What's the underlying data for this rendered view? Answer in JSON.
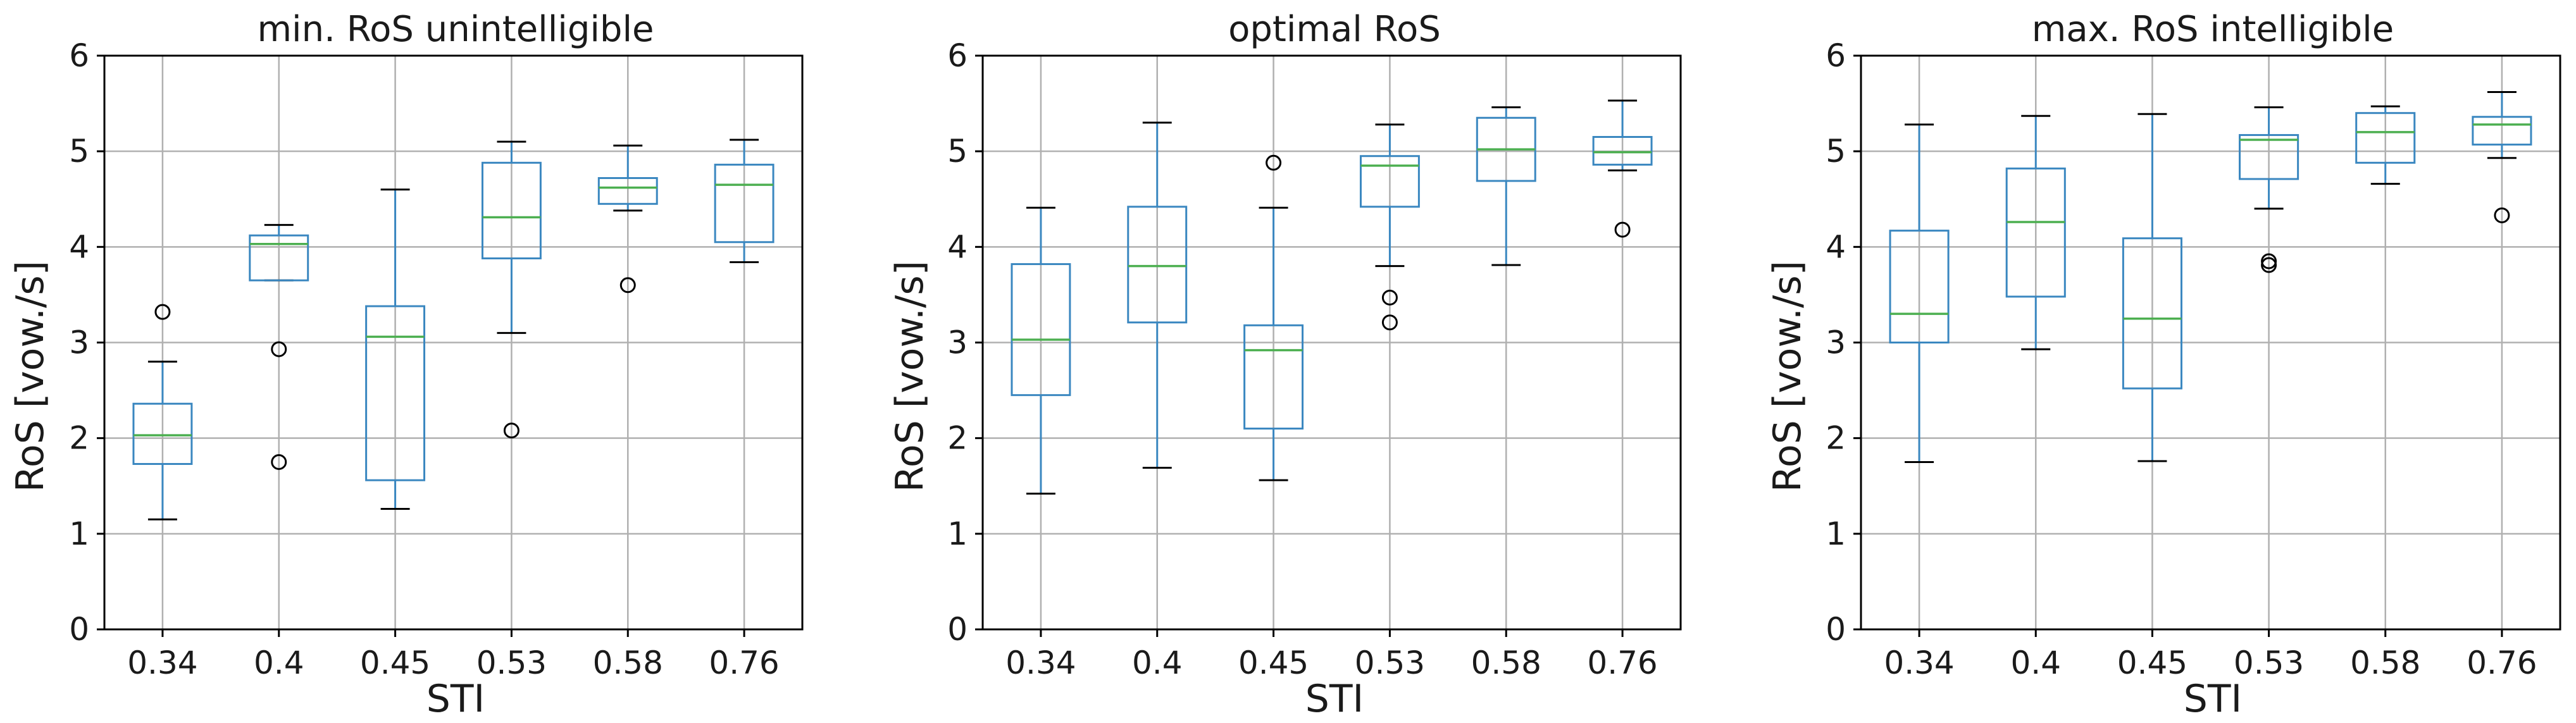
{
  "colors": {
    "box": "#3a87c0",
    "median": "#4caf50",
    "grid": "#b0b0b0",
    "flier": "#000000"
  },
  "chart_data": [
    {
      "type": "box",
      "title": "min. RoS unintelligible",
      "xlabel": "STI",
      "ylabel": "RoS [vow./s]",
      "ylim": [
        0,
        6
      ],
      "yticks": [
        "0",
        "1",
        "2",
        "3",
        "4",
        "5",
        "6"
      ],
      "categories": [
        "0.34",
        "0.4",
        "0.45",
        "0.53",
        "0.58",
        "0.76"
      ],
      "grid": true,
      "boxes": [
        {
          "whislo": 1.15,
          "q1": 1.73,
          "med": 2.03,
          "q3": 2.36,
          "whishi": 2.8,
          "fliers": [
            3.32
          ]
        },
        {
          "whislo": 3.65,
          "q1": 3.65,
          "med": 4.03,
          "q3": 4.12,
          "whishi": 4.23,
          "fliers": [
            2.93,
            1.75
          ]
        },
        {
          "whislo": 1.26,
          "q1": 1.56,
          "med": 3.06,
          "q3": 3.38,
          "whishi": 4.6,
          "fliers": []
        },
        {
          "whislo": 3.1,
          "q1": 3.88,
          "med": 4.31,
          "q3": 4.88,
          "whishi": 5.1,
          "fliers": [
            2.08
          ]
        },
        {
          "whislo": 4.38,
          "q1": 4.45,
          "med": 4.62,
          "q3": 4.72,
          "whishi": 5.06,
          "fliers": [
            3.6
          ]
        },
        {
          "whislo": 3.84,
          "q1": 4.05,
          "med": 4.65,
          "q3": 4.86,
          "whishi": 5.12,
          "fliers": []
        }
      ]
    },
    {
      "type": "box",
      "title": "optimal RoS",
      "xlabel": "STI",
      "ylabel": "RoS [vow./s]",
      "ylim": [
        0,
        6
      ],
      "yticks": [
        "0",
        "1",
        "2",
        "3",
        "4",
        "5",
        "6"
      ],
      "categories": [
        "0.34",
        "0.4",
        "0.45",
        "0.53",
        "0.58",
        "0.76"
      ],
      "grid": true,
      "boxes": [
        {
          "whislo": 1.42,
          "q1": 2.45,
          "med": 3.03,
          "q3": 3.82,
          "whishi": 4.41,
          "fliers": []
        },
        {
          "whislo": 1.69,
          "q1": 3.21,
          "med": 3.8,
          "q3": 4.42,
          "whishi": 5.3,
          "fliers": []
        },
        {
          "whislo": 1.56,
          "q1": 2.1,
          "med": 2.92,
          "q3": 3.18,
          "whishi": 4.41,
          "fliers": [
            4.88
          ]
        },
        {
          "whislo": 3.8,
          "q1": 4.42,
          "med": 4.85,
          "q3": 4.95,
          "whishi": 5.28,
          "fliers": [
            3.47,
            3.21
          ]
        },
        {
          "whislo": 3.81,
          "q1": 4.69,
          "med": 5.02,
          "q3": 5.35,
          "whishi": 5.46,
          "fliers": []
        },
        {
          "whislo": 4.8,
          "q1": 4.86,
          "med": 4.99,
          "q3": 5.15,
          "whishi": 5.53,
          "fliers": [
            4.18
          ]
        }
      ]
    },
    {
      "type": "box",
      "title": "max. RoS intelligible",
      "xlabel": "STI",
      "ylabel": "RoS [vow./s]",
      "ylim": [
        0,
        6
      ],
      "yticks": [
        "0",
        "1",
        "2",
        "3",
        "4",
        "5",
        "6"
      ],
      "categories": [
        "0.34",
        "0.4",
        "0.45",
        "0.53",
        "0.58",
        "0.76"
      ],
      "grid": true,
      "boxes": [
        {
          "whislo": 1.75,
          "q1": 3.0,
          "med": 3.3,
          "q3": 4.17,
          "whishi": 5.28,
          "fliers": []
        },
        {
          "whislo": 2.93,
          "q1": 3.48,
          "med": 4.26,
          "q3": 4.82,
          "whishi": 5.37,
          "fliers": []
        },
        {
          "whislo": 1.76,
          "q1": 2.52,
          "med": 3.25,
          "q3": 4.09,
          "whishi": 5.39,
          "fliers": []
        },
        {
          "whislo": 4.4,
          "q1": 4.71,
          "med": 5.12,
          "q3": 5.17,
          "whishi": 5.46,
          "fliers": [
            3.85,
            3.81
          ]
        },
        {
          "whislo": 4.66,
          "q1": 4.88,
          "med": 5.2,
          "q3": 5.4,
          "whishi": 5.47,
          "fliers": []
        },
        {
          "whislo": 4.93,
          "q1": 5.07,
          "med": 5.28,
          "q3": 5.36,
          "whishi": 5.62,
          "fliers": [
            4.33
          ]
        }
      ]
    }
  ]
}
